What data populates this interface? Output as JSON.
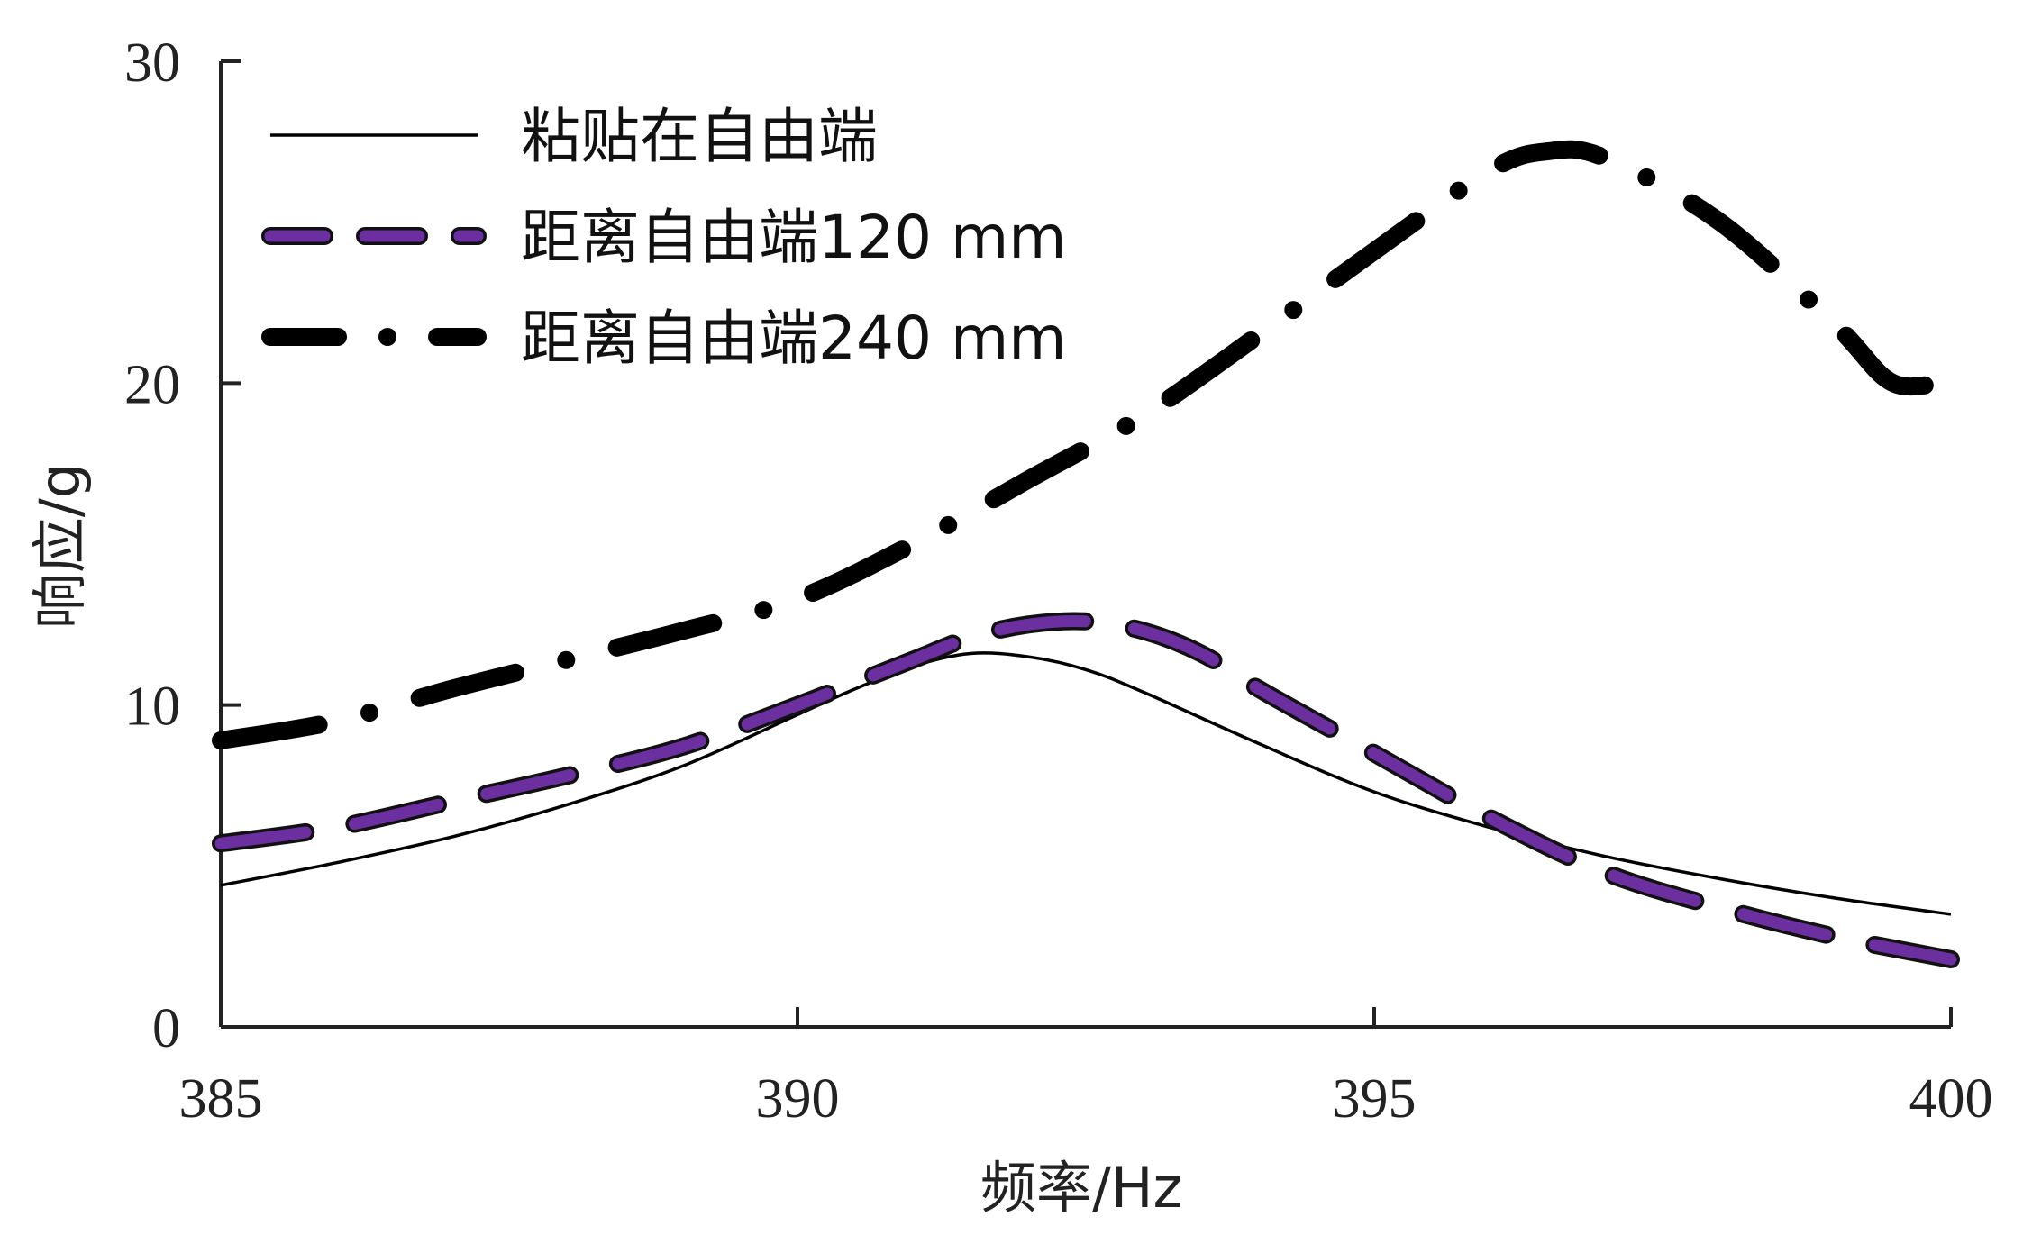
{
  "chart_data": {
    "type": "line",
    "xlabel": "频率/Hz",
    "ylabel": "响应/g",
    "xlim": [
      385,
      400
    ],
    "ylim": [
      0,
      30
    ],
    "xticks": [
      "385",
      "390",
      "395",
      "400"
    ],
    "yticks": [
      "0",
      "10",
      "20",
      "30"
    ],
    "grid": false,
    "legend_position": "top-left",
    "series": [
      {
        "name": "粘贴在自由端",
        "style": "solid",
        "color": "#000000",
        "x": [
          385,
          386,
          387,
          388,
          389,
          390,
          390.5,
          391,
          391.5,
          392,
          392.5,
          393,
          394,
          395,
          396,
          397,
          398,
          399,
          400
        ],
        "y": [
          4.4,
          5.1,
          5.9,
          6.9,
          8.1,
          9.7,
          10.5,
          11.2,
          11.6,
          11.5,
          11.1,
          10.4,
          8.8,
          7.3,
          6.2,
          5.3,
          4.6,
          4.0,
          3.5
        ]
      },
      {
        "name": "距离自由端120 mm",
        "style": "dashed",
        "color": "#6b2fa0",
        "x": [
          385,
          386,
          387,
          388,
          389,
          390,
          390.5,
          391,
          391.5,
          392,
          392.5,
          393,
          393.5,
          394,
          395,
          396,
          397,
          398,
          399,
          400
        ],
        "y": [
          5.7,
          6.2,
          7.0,
          7.8,
          8.7,
          10.0,
          10.7,
          11.4,
          12.1,
          12.5,
          12.6,
          12.3,
          11.6,
          10.5,
          8.5,
          6.5,
          4.8,
          3.7,
          2.8,
          2.1
        ]
      },
      {
        "name": "距离自由端240 mm",
        "style": "dash-dot",
        "color": "#000000",
        "x": [
          385,
          386,
          387,
          388,
          389,
          390,
          391,
          392,
          393,
          394,
          395,
          396,
          396.5,
          397,
          398,
          399,
          399.5,
          400
        ],
        "y": [
          8.9,
          9.5,
          10.5,
          11.4,
          12.3,
          13.3,
          15.0,
          17.0,
          19.0,
          21.5,
          24.1,
          26.6,
          27.2,
          27.0,
          25.0,
          21.8,
          20.0,
          20.1
        ]
      }
    ]
  }
}
